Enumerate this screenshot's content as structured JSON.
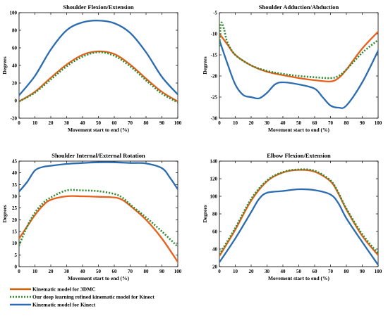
{
  "colors": {
    "threeDMC": "#e8601c",
    "deep": "#2e8b2e",
    "kinect": "#2b6cb0"
  },
  "legend": [
    {
      "label": "Kinematic model for 3DMC",
      "color": "#c9640f",
      "style": "solid"
    },
    {
      "label": "Our deep learning refined kinematic model for Kinect",
      "color": "#2e8b2e",
      "style": "dotted"
    },
    {
      "label": "Kinematic model for Kinect",
      "color": "#2b6cb0",
      "style": "solid"
    }
  ],
  "chart_data": [
    {
      "type": "line",
      "title": "Shoulder Flexion/Extension",
      "xlabel": "Movement start to end (%)",
      "ylabel": "Degrees",
      "xlim": [
        0,
        100
      ],
      "ylim": [
        -20,
        100
      ],
      "xticks": [
        0,
        10,
        20,
        30,
        40,
        50,
        60,
        70,
        80,
        90,
        100
      ],
      "yticks": [
        -20,
        0,
        20,
        40,
        60,
        80,
        100
      ],
      "series": [
        {
          "key": "threeDMC",
          "x": [
            0,
            10,
            20,
            30,
            40,
            50,
            60,
            70,
            80,
            90,
            100
          ],
          "y": [
            -1,
            10,
            26,
            41,
            52,
            56,
            53,
            41,
            25,
            10,
            -1
          ]
        },
        {
          "key": "deep",
          "x": [
            0,
            10,
            20,
            30,
            40,
            50,
            60,
            70,
            80,
            90,
            100
          ],
          "y": [
            -1,
            9,
            24,
            39,
            50,
            55,
            51,
            39,
            23,
            8,
            -2
          ]
        },
        {
          "key": "kinect",
          "x": [
            0,
            10,
            20,
            30,
            40,
            50,
            60,
            70,
            80,
            90,
            100
          ],
          "y": [
            6,
            28,
            58,
            80,
            89,
            91,
            88,
            77,
            55,
            27,
            7
          ]
        }
      ]
    },
    {
      "type": "line",
      "title": "Shoulder Adduction/Abduction",
      "xlabel": "Movement start to end (%)",
      "ylabel": "Degrees",
      "xlim": [
        0,
        100
      ],
      "ylim": [
        -30,
        -5
      ],
      "xticks": [
        0,
        10,
        20,
        30,
        40,
        50,
        60,
        70,
        80,
        90,
        100
      ],
      "yticks": [
        -30,
        -25,
        -20,
        -15,
        -10,
        -5
      ],
      "series": [
        {
          "key": "threeDMC",
          "x": [
            0,
            5,
            10,
            20,
            30,
            40,
            50,
            60,
            70,
            75,
            80,
            90,
            100
          ],
          "y": [
            -10,
            -12.5,
            -15,
            -17.5,
            -19,
            -19.8,
            -20.5,
            -21,
            -21.3,
            -20.5,
            -18.5,
            -13.5,
            -9.5
          ]
        },
        {
          "key": "deep",
          "x": [
            0,
            1,
            3,
            5,
            10,
            20,
            30,
            40,
            50,
            60,
            70,
            75,
            80,
            90,
            100
          ],
          "y": [
            -13,
            -7.5,
            -9,
            -12,
            -15,
            -17.5,
            -18.8,
            -19.5,
            -20,
            -20.3,
            -20.5,
            -20,
            -18.5,
            -14.5,
            -11.5
          ]
        },
        {
          "key": "kinect",
          "x": [
            0,
            5,
            10,
            15,
            20,
            25,
            30,
            35,
            40,
            50,
            60,
            65,
            70,
            75,
            80,
            90,
            100
          ],
          "y": [
            -11.5,
            -17,
            -22,
            -24.5,
            -25,
            -25.3,
            -24,
            -22,
            -21.5,
            -22,
            -23,
            -25,
            -27,
            -27.5,
            -27,
            -21.5,
            -14
          ]
        }
      ]
    },
    {
      "type": "line",
      "title": "Shoulder Internal/External Rotation",
      "xlabel": "Movement start to end (%)",
      "ylabel": "Degrees",
      "xlim": [
        0,
        100
      ],
      "ylim": [
        0,
        45
      ],
      "xticks": [
        0,
        10,
        20,
        30,
        40,
        50,
        60,
        70,
        80,
        90,
        100
      ],
      "yticks": [
        0,
        5,
        10,
        15,
        20,
        25,
        30,
        35,
        40,
        45
      ],
      "series": [
        {
          "key": "threeDMC",
          "x": [
            0,
            5,
            10,
            15,
            20,
            30,
            40,
            50,
            60,
            65,
            70,
            80,
            90,
            100
          ],
          "y": [
            12,
            17,
            22,
            26,
            28.5,
            30,
            30,
            29.8,
            29.5,
            28.5,
            26,
            20,
            12,
            2
          ]
        },
        {
          "key": "deep",
          "x": [
            0,
            5,
            10,
            15,
            20,
            30,
            40,
            50,
            60,
            65,
            70,
            80,
            90,
            100
          ],
          "y": [
            9,
            17,
            23,
            27,
            29.5,
            32.5,
            32.5,
            32.2,
            31,
            29.5,
            26.5,
            21,
            15,
            8.5
          ]
        },
        {
          "key": "kinect",
          "x": [
            0,
            5,
            10,
            15,
            20,
            30,
            40,
            50,
            60,
            70,
            80,
            90,
            95,
            100
          ],
          "y": [
            32,
            36,
            41,
            42.5,
            43,
            43.8,
            44.2,
            44.5,
            44.5,
            44.2,
            44,
            42,
            38,
            33
          ]
        }
      ]
    },
    {
      "type": "line",
      "title": "Elbow Flexion/Extension",
      "xlabel": "Movement start to end (%)",
      "ylabel": "Degrees",
      "xlim": [
        0,
        100
      ],
      "ylim": [
        20,
        140
      ],
      "xticks": [
        0,
        10,
        20,
        30,
        40,
        50,
        60,
        70,
        80,
        90,
        100
      ],
      "yticks": [
        20,
        40,
        60,
        80,
        100,
        120,
        140
      ],
      "series": [
        {
          "key": "threeDMC",
          "x": [
            0,
            10,
            20,
            30,
            40,
            50,
            60,
            70,
            75,
            80,
            90,
            100
          ],
          "y": [
            32,
            62,
            95,
            117,
            127,
            130,
            128,
            117,
            103,
            85,
            55,
            33
          ]
        },
        {
          "key": "deep",
          "x": [
            0,
            10,
            20,
            30,
            40,
            50,
            60,
            70,
            75,
            80,
            90,
            100
          ],
          "y": [
            34,
            64,
            97,
            118,
            127.5,
            130.5,
            129,
            118,
            104,
            86,
            57,
            35
          ]
        },
        {
          "key": "kinect",
          "x": [
            0,
            10,
            20,
            25,
            30,
            40,
            50,
            60,
            70,
            75,
            80,
            90,
            100
          ],
          "y": [
            25,
            52,
            82,
            97,
            104,
            106,
            108,
            107,
            102,
            92,
            75,
            48,
            22
          ]
        }
      ]
    }
  ]
}
